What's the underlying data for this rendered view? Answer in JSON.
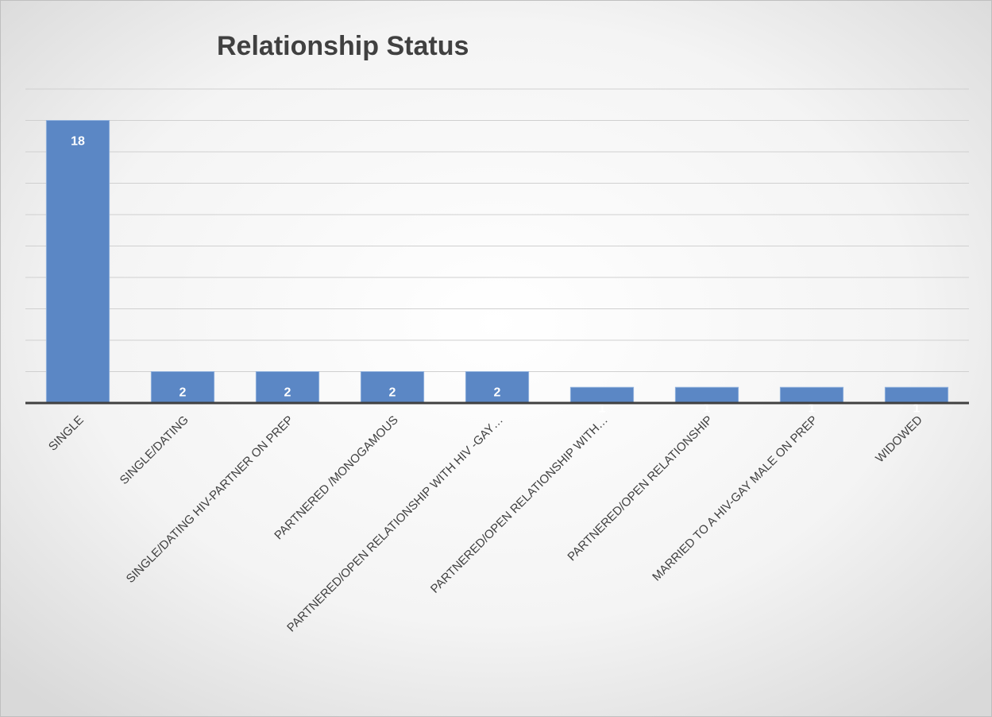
{
  "chart_data": {
    "type": "bar",
    "title": "Relationship Status",
    "categories": [
      "SINGLE",
      "SINGLE/DATING",
      "SINGLE/DATING HIV-PARTNER ON PREP",
      "PARTNERED /MONOGAMOUS",
      "PARTNERED/OPEN RELATIONSHIP WITH HIV -GAY…",
      "PARTNERED/OPEN RELATIONSHIP WITH…",
      "PARTNERED/OPEN RELATIONSHIP",
      "MARRIED TO A HIV-GAY MALE ON PREP",
      "WIDOWED"
    ],
    "values": [
      18,
      2,
      2,
      2,
      2,
      1,
      1,
      1,
      1
    ],
    "color": "#5b87c5",
    "ylim": [
      0,
      20
    ],
    "yticks": [
      0,
      2,
      4,
      6,
      8,
      10,
      12,
      14,
      16,
      18,
      20
    ],
    "grid": true
  }
}
